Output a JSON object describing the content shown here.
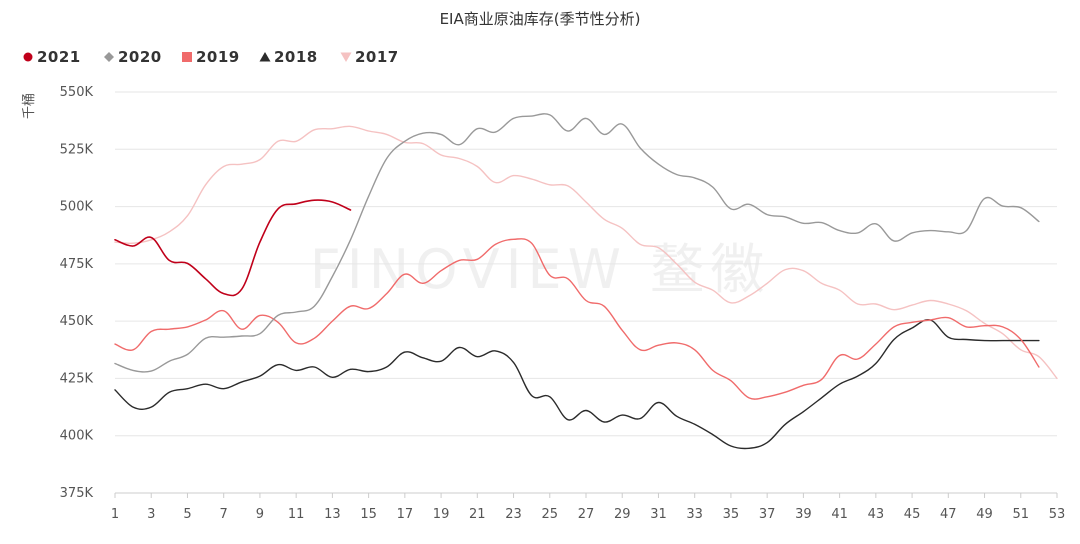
{
  "chart_data": {
    "type": "line",
    "title": "EIA商业原油库存(季节性分析)",
    "ylabel": "千桶",
    "watermark": "FINOVIEW 鳌徽",
    "ylim": [
      375000,
      550000
    ],
    "y_ticks": [
      550000,
      525000,
      500000,
      475000,
      450000,
      425000,
      400000,
      375000
    ],
    "y_tick_labels": [
      "550K",
      "525K",
      "500K",
      "475K",
      "450K",
      "425K",
      "400K",
      "375K"
    ],
    "xlim": [
      1,
      53
    ],
    "x_ticks": [
      1,
      3,
      5,
      7,
      9,
      11,
      13,
      15,
      17,
      19,
      21,
      23,
      25,
      27,
      29,
      31,
      33,
      35,
      37,
      39,
      41,
      43,
      45,
      47,
      49,
      51,
      53
    ],
    "x_tick_labels": [
      "1",
      "3",
      "5",
      "7",
      "9",
      "11",
      "13",
      "15",
      "17",
      "19",
      "21",
      "23",
      "25",
      "27",
      "29",
      "31",
      "33",
      "35",
      "37",
      "39",
      "41",
      "43",
      "45",
      "47",
      "49",
      "51",
      "53"
    ],
    "legend": "top-left",
    "grid": "horizontal",
    "series": [
      {
        "name": "2021",
        "color": "#c0001a",
        "marker": "circle",
        "width": 1.6,
        "x": [
          1,
          2,
          3,
          4,
          5,
          6,
          7,
          8,
          9,
          10,
          11,
          12,
          13,
          14
        ],
        "values": [
          485500,
          482800,
          486500,
          476500,
          475200,
          468500,
          462000,
          464000,
          484500,
          499000,
          501200,
          502800,
          502000,
          498500
        ]
      },
      {
        "name": "2020",
        "color": "#999999",
        "marker": "diamond",
        "width": 1.4,
        "x": [
          1,
          2,
          3,
          4,
          5,
          6,
          7,
          8,
          9,
          10,
          11,
          12,
          13,
          14,
          15,
          16,
          17,
          18,
          19,
          20,
          21,
          22,
          23,
          24,
          25,
          26,
          27,
          28,
          29,
          30,
          31,
          32,
          33,
          34,
          35,
          36,
          37,
          38,
          39,
          40,
          41,
          42,
          43,
          44,
          45,
          46,
          47,
          48,
          49,
          50,
          51,
          52
        ],
        "values": [
          431500,
          428500,
          428200,
          432500,
          435500,
          442500,
          443000,
          443500,
          444500,
          452500,
          454000,
          456500,
          469500,
          485500,
          504500,
          521000,
          528500,
          532000,
          531500,
          527000,
          534000,
          532500,
          538500,
          539500,
          540000,
          533000,
          538500,
          531500,
          536000,
          525500,
          518500,
          514000,
          512500,
          508500,
          499000,
          501000,
          496500,
          495500,
          492700,
          493000,
          489500,
          488500,
          492500,
          485000,
          488500,
          489500,
          489000,
          489500,
          503500,
          500200,
          499500,
          493500
        ]
      },
      {
        "name": "2019",
        "color": "#f06b6b",
        "marker": "square",
        "width": 1.4,
        "x": [
          1,
          2,
          3,
          4,
          5,
          6,
          7,
          8,
          9,
          10,
          11,
          12,
          13,
          14,
          15,
          16,
          17,
          18,
          19,
          20,
          21,
          22,
          23,
          24,
          25,
          26,
          27,
          28,
          29,
          30,
          31,
          32,
          33,
          34,
          35,
          36,
          37,
          38,
          39,
          40,
          41,
          42,
          43,
          44,
          45,
          46,
          47,
          48,
          49,
          50,
          51,
          52
        ],
        "values": [
          440000,
          437500,
          445500,
          446500,
          447500,
          450500,
          454500,
          446500,
          452500,
          449500,
          440500,
          442500,
          450000,
          456500,
          455500,
          462000,
          470500,
          466500,
          472000,
          476500,
          477000,
          483500,
          485700,
          484000,
          470000,
          468500,
          459000,
          456500,
          446000,
          437500,
          439500,
          440500,
          437500,
          428500,
          424000,
          416500,
          417000,
          419000,
          422000,
          424500,
          435000,
          433500,
          440000,
          447500,
          449500,
          450500,
          451500,
          447500,
          448000,
          447500,
          442000,
          430000
        ]
      },
      {
        "name": "2018",
        "color": "#2b2b2b",
        "marker": "triangle",
        "width": 1.4,
        "x": [
          1,
          2,
          3,
          4,
          5,
          6,
          7,
          8,
          9,
          10,
          11,
          12,
          13,
          14,
          15,
          16,
          17,
          18,
          19,
          20,
          21,
          22,
          23,
          24,
          25,
          26,
          27,
          28,
          29,
          30,
          31,
          32,
          33,
          34,
          35,
          36,
          37,
          38,
          39,
          40,
          41,
          42,
          43,
          44,
          45,
          46,
          47,
          48,
          49,
          50,
          51,
          52
        ],
        "values": [
          420000,
          412500,
          412500,
          419000,
          420500,
          422500,
          420500,
          423500,
          426000,
          431000,
          428500,
          430000,
          425500,
          429000,
          428000,
          430000,
          436500,
          434000,
          432500,
          438500,
          434500,
          437000,
          432000,
          417500,
          417000,
          407000,
          411000,
          406000,
          409000,
          407500,
          414500,
          408500,
          405000,
          400500,
          395500,
          394500,
          397000,
          405000,
          410500,
          416500,
          422500,
          426000,
          431500,
          442000,
          447000,
          450500,
          443000,
          442000,
          441500,
          441500,
          441500,
          441500
        ]
      },
      {
        "name": "2017",
        "color": "#f5c2c2",
        "marker": "triangle-down",
        "width": 1.4,
        "x": [
          1,
          2,
          3,
          4,
          5,
          6,
          7,
          8,
          9,
          10,
          11,
          12,
          13,
          14,
          15,
          16,
          17,
          18,
          19,
          20,
          21,
          22,
          23,
          24,
          25,
          26,
          27,
          28,
          29,
          30,
          31,
          32,
          33,
          34,
          35,
          36,
          37,
          38,
          39,
          40,
          41,
          42,
          43,
          44,
          45,
          46,
          47,
          48,
          49,
          50,
          51,
          52,
          53
        ],
        "values": [
          484500,
          484000,
          485500,
          489000,
          496000,
          509500,
          517500,
          518500,
          520500,
          528500,
          528500,
          533500,
          534000,
          535000,
          533000,
          531500,
          528000,
          527500,
          522500,
          521000,
          517500,
          510500,
          513500,
          512000,
          509500,
          509000,
          502000,
          494500,
          490500,
          483500,
          482000,
          475000,
          467000,
          463500,
          458000,
          461000,
          466500,
          472500,
          472000,
          466500,
          463500,
          457500,
          457500,
          455000,
          457000,
          459000,
          457500,
          454500,
          449000,
          444500,
          437500,
          434500,
          425000
        ]
      }
    ]
  }
}
